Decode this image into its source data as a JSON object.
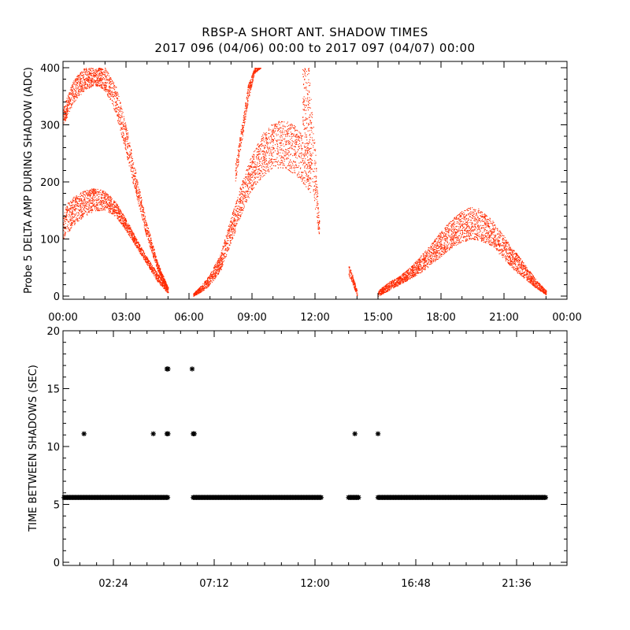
{
  "header": {
    "title": "RBSP-A SHORT ANT. SHADOW TIMES",
    "subtitle": "2017 096 (04/06) 00:00 to 2017 097 (04/07) 00:00"
  },
  "colors": {
    "amp": "#ff2a00",
    "time": "#000000"
  },
  "chart_data": [
    {
      "type": "scatter",
      "ylabel": "Probe 5 DELTA AMP DURING SHADOW (ADC)",
      "xlabel": "",
      "xlim": [
        0,
        24
      ],
      "ylim": [
        0,
        400
      ],
      "xticks": [
        "00:00",
        "03:00",
        "06:00",
        "09:00",
        "12:00",
        "15:00",
        "18:00",
        "21:00",
        "00:00"
      ],
      "yticks": [
        0,
        100,
        200,
        300,
        400
      ],
      "segments": [
        {
          "t": [
            0.0,
            0.5,
            1.0,
            1.5,
            2.0,
            2.5,
            3.0,
            3.5,
            4.0,
            4.5,
            5.0
          ],
          "lower": [
            100,
            125,
            140,
            150,
            150,
            140,
            115,
            85,
            55,
            25,
            5
          ],
          "upper": [
            155,
            175,
            185,
            190,
            185,
            165,
            135,
            100,
            68,
            40,
            18
          ]
        },
        {
          "t": [
            0.0,
            0.5,
            1.0,
            1.5,
            2.0,
            2.5,
            3.0,
            3.5,
            4.0,
            4.5,
            5.0
          ],
          "lower": [
            300,
            340,
            360,
            370,
            360,
            320,
            250,
            170,
            100,
            45,
            10
          ],
          "upper": [
            330,
            380,
            400,
            400,
            400,
            370,
            300,
            210,
            125,
            60,
            15
          ]
        },
        {
          "t": [
            6.2,
            6.6,
            7.0,
            7.5,
            8.0,
            8.5,
            9.0,
            9.5,
            10.0,
            10.5,
            11.0,
            11.5,
            11.8
          ],
          "lower": [
            0,
            8,
            20,
            45,
            95,
            145,
            185,
            210,
            225,
            225,
            215,
            195,
            180
          ],
          "upper": [
            5,
            20,
            40,
            75,
            140,
            200,
            250,
            285,
            305,
            310,
            300,
            280,
            260
          ]
        },
        {
          "t": [
            8.2,
            8.5,
            8.8,
            9.1,
            9.4
          ],
          "lower": [
            200,
            270,
            340,
            390,
            400
          ],
          "upper": [
            230,
            300,
            370,
            400,
            400
          ]
        },
        {
          "t": [
            11.4,
            11.7,
            12.0,
            12.2
          ],
          "lower": [
            300,
            260,
            150,
            100
          ],
          "upper": [
            400,
            400,
            260,
            130
          ]
        },
        {
          "t": [
            13.6,
            13.8,
            14.0
          ],
          "lower": [
            35,
            20,
            0
          ],
          "upper": [
            55,
            35,
            10
          ]
        },
        {
          "t": [
            15.0,
            15.5,
            16.0,
            16.5,
            17.0,
            17.5,
            18.0,
            18.5,
            19.0,
            19.5,
            20.0,
            20.5,
            21.0,
            21.5,
            22.0,
            22.5,
            23.0
          ],
          "lower": [
            0,
            10,
            20,
            30,
            40,
            55,
            70,
            85,
            95,
            100,
            95,
            85,
            65,
            45,
            30,
            15,
            2
          ],
          "upper": [
            10,
            25,
            35,
            50,
            70,
            90,
            115,
            135,
            150,
            158,
            150,
            130,
            105,
            80,
            55,
            30,
            10
          ]
        }
      ]
    },
    {
      "type": "scatter",
      "ylabel": "TIME BETWEEN SHADOWS (SEC)",
      "xlabel": "",
      "xlim": [
        0,
        24
      ],
      "ylim": [
        0,
        20
      ],
      "xticks": [
        "02:24",
        "07:12",
        "12:00",
        "16:48",
        "21:36"
      ],
      "yticks": [
        0,
        5,
        10,
        15,
        20
      ],
      "series": [
        {
          "name": "",
          "baseline": 5.6,
          "ranges": [
            [
              0.05,
              5.0
            ],
            [
              6.2,
              12.3
            ],
            [
              13.6,
              14.1
            ],
            [
              15.0,
              23.0
            ]
          ],
          "points": [
            [
              1.0,
              11.1
            ],
            [
              4.3,
              11.1
            ],
            [
              4.95,
              11.1
            ],
            [
              5.0,
              11.1
            ],
            [
              4.95,
              16.7
            ],
            [
              5.0,
              16.7
            ],
            [
              6.15,
              16.7
            ],
            [
              6.2,
              11.1
            ],
            [
              6.25,
              11.1
            ],
            [
              13.9,
              11.1
            ],
            [
              15.0,
              11.1
            ]
          ]
        }
      ]
    }
  ]
}
